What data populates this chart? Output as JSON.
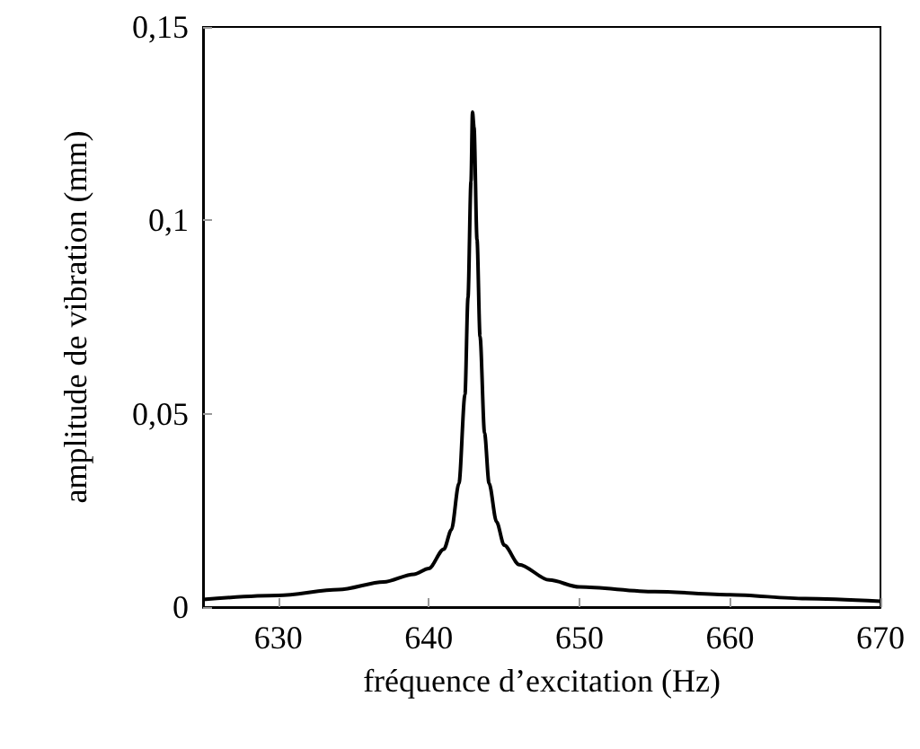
{
  "chart_data": {
    "type": "line",
    "xlabel": "fréquence d’excitation (Hz)",
    "ylabel": "amplitude de vibration (mm)",
    "series": [
      {
        "color": "#000000",
        "x": [
          625,
          630,
          634,
          637,
          639,
          640,
          641,
          641.5,
          642,
          642.4,
          642.6,
          642.8,
          642.9,
          643.0,
          643.2,
          643.4,
          643.7,
          644,
          644.5,
          645,
          646,
          648,
          650,
          655,
          660,
          665,
          670
        ],
        "values": [
          0.002,
          0.003,
          0.0045,
          0.0065,
          0.0085,
          0.01,
          0.015,
          0.02,
          0.032,
          0.055,
          0.08,
          0.11,
          0.128,
          0.124,
          0.095,
          0.07,
          0.045,
          0.032,
          0.022,
          0.016,
          0.011,
          0.007,
          0.0052,
          0.004,
          0.0032,
          0.0022,
          0.0015
        ]
      }
    ],
    "xlim": [
      625,
      670
    ],
    "xticks": [
      630,
      640,
      650,
      660,
      670
    ],
    "ylim": [
      0,
      0.15
    ],
    "yticks": [
      {
        "value": 0,
        "label": "0"
      },
      {
        "value": 0.05,
        "label": "0,05"
      },
      {
        "value": 0.1,
        "label": "0,1"
      },
      {
        "value": 0.15,
        "label": "0,15"
      }
    ],
    "grid": false,
    "marker": "none",
    "line_style": "solid"
  }
}
